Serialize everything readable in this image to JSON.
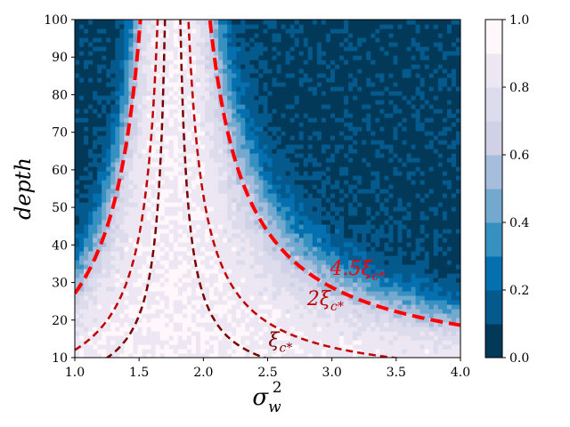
{
  "chart_data": {
    "type": "heatmap",
    "title": "",
    "xlabel": "σ_w^2",
    "ylabel": "depth",
    "xlim": [
      1.0,
      4.0
    ],
    "ylim": [
      10,
      100
    ],
    "x_ticks": [
      "1.0",
      "1.5",
      "2.0",
      "2.5",
      "3.0",
      "3.5",
      "4.0"
    ],
    "y_ticks": [
      "10",
      "20",
      "30",
      "40",
      "50",
      "60",
      "70",
      "80",
      "90",
      "100"
    ],
    "colorbar": {
      "ticks": [
        "0.0",
        "0.2",
        "0.4",
        "0.6",
        "0.8",
        "1.0"
      ],
      "levels": [
        0.0,
        0.1,
        0.2,
        0.3,
        0.4,
        0.5,
        0.6,
        0.7,
        0.8,
        0.9,
        1.0
      ],
      "colors": [
        "#023858",
        "#045a8d",
        "#0570b0",
        "#3690c0",
        "#74a9cf",
        "#a6bddb",
        "#d0d1e6",
        "#dcdcec",
        "#ece7f2",
        "#fff7fb"
      ]
    },
    "critical_sigma": 1.76,
    "series": [
      {
        "name": "ξ_c*",
        "label_main": "ξ",
        "label_sub": "c*",
        "multiplier": 1.0,
        "color": "#7a0000",
        "style": "dashed",
        "width": 2.5,
        "label_pos": [
          2.6,
          13
        ]
      },
      {
        "name": "2ξ_c*",
        "label_main": "2ξ",
        "label_sub": "c*",
        "multiplier": 2.0,
        "color": "#c00000",
        "style": "dashed",
        "width": 2.5,
        "label_pos": [
          2.95,
          24
        ]
      },
      {
        "name": "4.5ξ_c*",
        "label_main": "4.5ξ",
        "label_sub": "c*",
        "multiplier": 4.5,
        "color": "#ff0000",
        "style": "dashed",
        "width": 4,
        "label_pos": [
          3.2,
          32
        ]
      }
    ]
  }
}
